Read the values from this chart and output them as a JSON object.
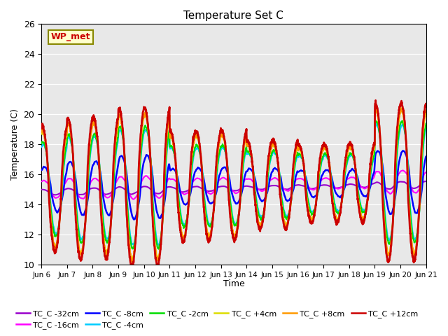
{
  "title": "Temperature Set C",
  "xlabel": "Time",
  "ylabel": "Temperature (C)",
  "ylim": [
    10,
    26
  ],
  "yticks": [
    10,
    12,
    14,
    16,
    18,
    20,
    22,
    24,
    26
  ],
  "bg_color": "#e8e8e8",
  "series_order": [
    "TC_C -32cm",
    "TC_C -16cm",
    "TC_C -8cm",
    "TC_C -4cm",
    "TC_C -2cm",
    "TC_C +4cm",
    "TC_C +8cm",
    "TC_C +12cm"
  ],
  "colors": {
    "TC_C -32cm": "#9900cc",
    "TC_C -16cm": "#ff00ff",
    "TC_C -8cm": "#0000ff",
    "TC_C -4cm": "#00ccff",
    "TC_C -2cm": "#00dd00",
    "TC_C +4cm": "#dddd00",
    "TC_C +8cm": "#ff9900",
    "TC_C +12cm": "#cc0000"
  },
  "lw": {
    "TC_C -32cm": 1.5,
    "TC_C -16cm": 1.5,
    "TC_C -8cm": 1.8,
    "TC_C -4cm": 1.5,
    "TC_C -2cm": 1.5,
    "TC_C +4cm": 1.5,
    "TC_C +8cm": 1.8,
    "TC_C +12cm": 2.0
  },
  "legend_label": "WP_met",
  "legend_color": "#cc0000",
  "legend_bg": "#ffffcc",
  "legend_edge": "#888800",
  "n_days": 15,
  "pts_per_day": 144,
  "start_day": 6,
  "xtick_interval": 1
}
